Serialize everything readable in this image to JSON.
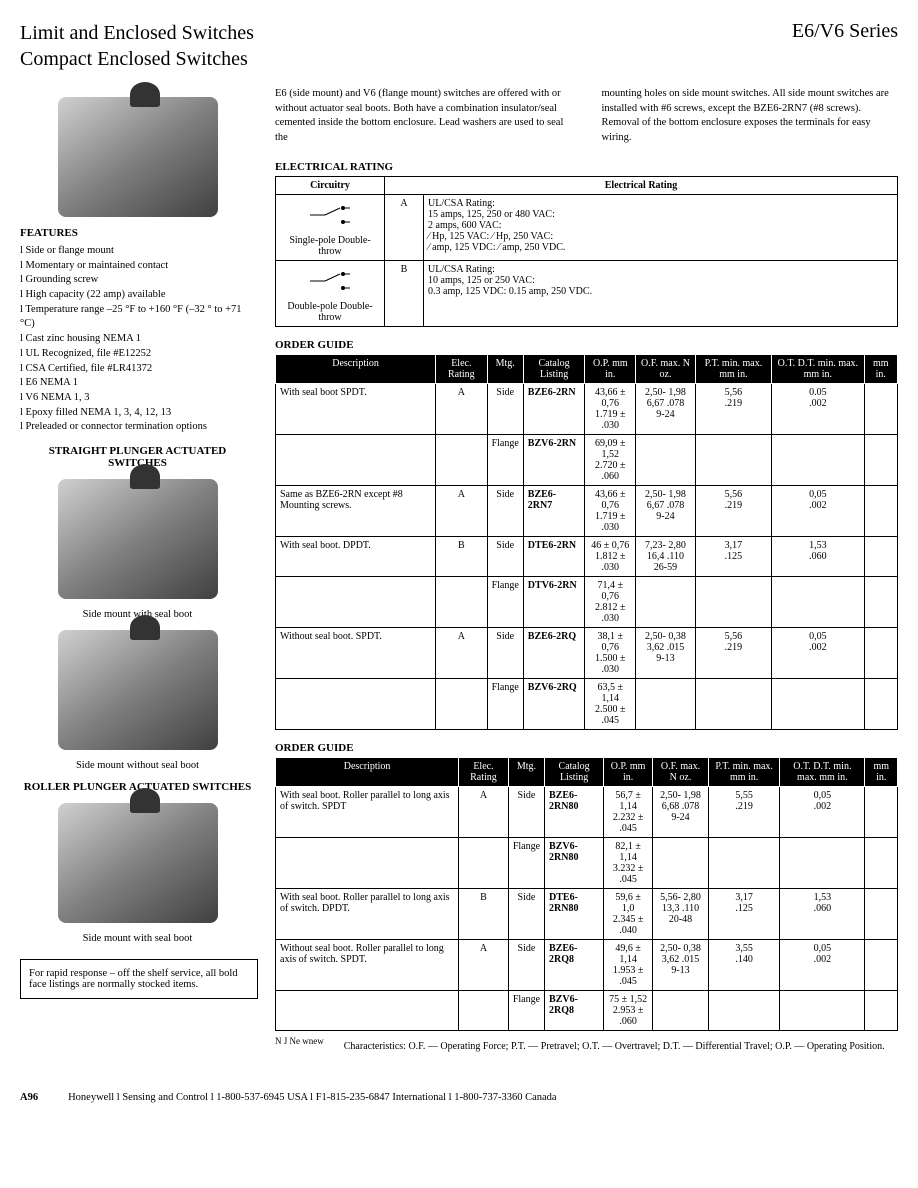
{
  "header": {
    "title1": "Limit and Enclosed Switches",
    "title2": "Compact Enclosed Switches",
    "series": "E6/V6 Series"
  },
  "intro": {
    "col1": "E6 (side mount) and V6 (flange mount) switches are offered with or without actuator seal boots. Both have a combination insulator/seal cemented inside the bottom enclosure. Lead washers are used to seal the",
    "col2": "mounting holes on side mount switches. All side mount switches are installed with #6 screws, except the BZE6-2RN7 (#8 screws). Removal of the bottom enclosure exposes the terminals for easy wiring."
  },
  "features": {
    "heading": "FEATURES",
    "items": [
      "Side or flange mount",
      "Momentary or maintained contact",
      "Grounding screw",
      "High capacity (22 amp) available",
      "Temperature range –25 °F to +160 °F (–32 ° to +71 °C)",
      "Cast zinc housing NEMA 1",
      "UL Recognized, file #E12252",
      "CSA Certified, file #LR41372",
      "E6 NEMA 1",
      "V6 NEMA 1, 3",
      "Epoxy filled NEMA 1, 3, 4, 12, 13",
      "Preleaded or connector termination options"
    ]
  },
  "sections": {
    "straight": "STRAIGHT PLUNGER ACTUATED SWITCHES",
    "roller": "ROLLER PLUNGER ACTUATED SWITCHES"
  },
  "captions": {
    "c1": "Side mount with seal boot",
    "c2": "Side mount without seal boot",
    "c3": "Side mount with seal boot"
  },
  "electrical": {
    "heading": "ELECTRICAL RATING",
    "cols": {
      "circuitry": "Circuitry",
      "rating": "Electrical Rating"
    },
    "rows": [
      {
        "type": "Single-pole Double-throw",
        "code": "A",
        "text": "UL/CSA Rating:\n15 amps, 125, 250 or 480 VAC:\n2 amps, 600 VAC:\n⁄ Hp, 125 VAC:    ⁄ Hp, 250 VAC:\n⁄ amp, 125 VDC:    ⁄ amp, 250 VDC."
      },
      {
        "type": "Double-pole Double-throw",
        "code": "B",
        "text": "UL/CSA Rating:\n10 amps, 125 or 250 VAC:\n0.3 amp, 125 VDC: 0.15 amp, 250 VDC."
      }
    ]
  },
  "order1": {
    "heading": "ORDER GUIDE",
    "cols": [
      "Description",
      "Elec. Rating",
      "Mtg.",
      "Catalog Listing",
      "O.P. mm in.",
      "O.F. max. N oz.",
      "P.T. min. max. mm in.",
      "O.T. D.T. min. max. mm in.",
      "mm in."
    ],
    "rows": [
      {
        "desc": "With seal boot SPDT.",
        "rating": "A",
        "mtg": "Side",
        "cat": "BZE6-2RN",
        "op": "43,66 ± 0,76\n1.719 ± .030",
        "of": "2,50- 1,98\n6,67 .078\n9-24",
        "pt": "5,56\n.219",
        "ot": "0.05\n.002",
        "dt": ""
      },
      {
        "desc": "",
        "rating": "",
        "mtg": "Flange",
        "cat": "BZV6-2RN",
        "op": "69,09 ± 1,52\n2.720 ± .060",
        "of": "",
        "pt": "",
        "ot": "",
        "dt": ""
      },
      {
        "desc": "Same as BZE6-2RN except #8 Mounting screws.",
        "rating": "A",
        "mtg": "Side",
        "cat": "BZE6-2RN7",
        "op": "43,66 ± 0,76\n1.719 ± .030",
        "of": "2,50- 1,98\n6,67 .078\n9-24",
        "pt": "5,56\n.219",
        "ot": "0,05\n.002",
        "dt": ""
      },
      {
        "desc": "With seal boot. DPDT.",
        "rating": "B",
        "mtg": "Side",
        "cat": "DTE6-2RN",
        "op": "46 ± 0,76\n1.812 ± .030",
        "of": "7,23- 2,80\n16,4 .110\n26-59",
        "pt": "3,17\n.125",
        "ot": "1,53\n.060",
        "dt": ""
      },
      {
        "desc": "",
        "rating": "",
        "mtg": "Flange",
        "cat": "DTV6-2RN",
        "op": "71,4 ± 0,76\n2.812 ± .030",
        "of": "",
        "pt": "",
        "ot": "",
        "dt": ""
      },
      {
        "desc": "Without seal boot. SPDT.",
        "rating": "A",
        "mtg": "Side",
        "cat": "BZE6-2RQ",
        "op": "38,1 ± 0,76\n1.500 ± .030",
        "of": "2,50- 0,38\n3,62 .015\n9-13",
        "pt": "5,56\n.219",
        "ot": "0,05\n.002",
        "dt": ""
      },
      {
        "desc": "",
        "rating": "",
        "mtg": "Flange",
        "cat": "BZV6-2RQ",
        "op": "63,5 ± 1,14\n2.500 ± .045",
        "of": "",
        "pt": "",
        "ot": "",
        "dt": ""
      }
    ]
  },
  "order2": {
    "heading": "ORDER GUIDE",
    "cols": [
      "Description",
      "Elec. Rating",
      "Mtg.",
      "Catalog Listing",
      "O.P. mm in.",
      "O.F. max. N oz.",
      "P.T. min. max. mm in.",
      "O.T. D.T. min. max. mm in.",
      "mm in."
    ],
    "rows": [
      {
        "desc": "With seal boot. Roller parallel to long axis of switch. SPDT",
        "rating": "A",
        "mtg": "Side",
        "cat": "BZE6-2RN80",
        "op": "56,7 ± 1,14\n2.232 ± .045",
        "of": "2,50- 1,98\n6,68 .078\n9-24",
        "pt": "5,55\n.219",
        "ot": "0,05\n.002",
        "dt": ""
      },
      {
        "desc": "",
        "rating": "",
        "mtg": "Flange",
        "cat": "BZV6-2RN80",
        "op": "82,1 ± 1,14\n3.232 ± .045",
        "of": "",
        "pt": "",
        "ot": "",
        "dt": ""
      },
      {
        "desc": "With seal boot. Roller parallel to long axis of switch. DPDT.",
        "rating": "B",
        "mtg": "Side",
        "cat": "DTE6-2RN80",
        "op": "59,6 ± 1,0\n2.345 ± .040",
        "of": "5,56- 2,80\n13,3 .110\n20-48",
        "pt": "3,17\n.125",
        "ot": "1,53\n.060",
        "dt": ""
      },
      {
        "desc": "Without seal boot. Roller parallel to long axis of switch. SPDT.",
        "rating": "A",
        "mtg": "Side",
        "cat": "BZE6-2RQ8",
        "op": "49,6 ± 1,14\n1.953 ± .045",
        "of": "2,50- 0,38\n3,62 .015\n9-13",
        "pt": "3,55\n.140",
        "ot": "0,05\n.002",
        "dt": ""
      },
      {
        "desc": "",
        "rating": "",
        "mtg": "Flange",
        "cat": "BZV6-2RQ8",
        "op": "75 ± 1,52\n2.953 ± .060",
        "of": "",
        "pt": "",
        "ot": "",
        "dt": ""
      }
    ]
  },
  "newnote": "N J Ne wnew",
  "charnote": "Characteristics: O.F. — Operating Force; P.T. — Pretravel; O.T. — Overtravel; D.T. — Differential Travel; O.P. — Operating Position.",
  "notebox": "For rapid response – off the shelf service, all bold face listings are normally stocked items.",
  "footer": {
    "page": "A96",
    "text": "Honeywell l Sensing and Control l 1-800-537-6945 USA l F1-815-235-6847 International l 1-800-737-3360 Canada"
  }
}
